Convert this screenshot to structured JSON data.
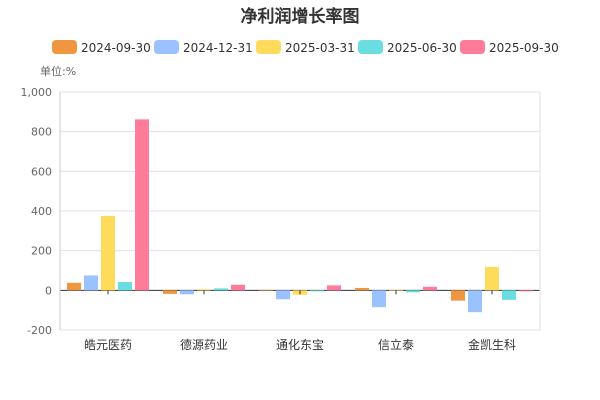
{
  "chart_data": {
    "type": "bar",
    "title": "净利润增长率图",
    "unit_label": "单位:%",
    "categories": [
      "皓元医药",
      "德源药业",
      "通化东宝",
      "信立泰",
      "金凯生科"
    ],
    "series": [
      {
        "name": "2024-09-30",
        "color": "#EE9740",
        "values": [
          38,
          -18,
          0,
          12,
          -52
        ]
      },
      {
        "name": "2024-12-31",
        "color": "#99C2FF",
        "values": [
          75,
          -20,
          -45,
          -85,
          -110
        ]
      },
      {
        "name": "2025-03-31",
        "color": "#FFDB5C",
        "values": [
          375,
          5,
          -22,
          0,
          118
        ]
      },
      {
        "name": "2025-06-30",
        "color": "#6ADDE0",
        "values": [
          42,
          10,
          -5,
          -10,
          -48
        ]
      },
      {
        "name": "2025-09-30",
        "color": "#FF7B9A",
        "values": [
          862,
          28,
          25,
          18,
          -5
        ]
      }
    ],
    "ylim": [
      -200,
      1000
    ],
    "yticks": [
      "-200",
      "0",
      "200",
      "400",
      "600",
      "800",
      "1,000"
    ],
    "grid": true,
    "legend": "top"
  }
}
